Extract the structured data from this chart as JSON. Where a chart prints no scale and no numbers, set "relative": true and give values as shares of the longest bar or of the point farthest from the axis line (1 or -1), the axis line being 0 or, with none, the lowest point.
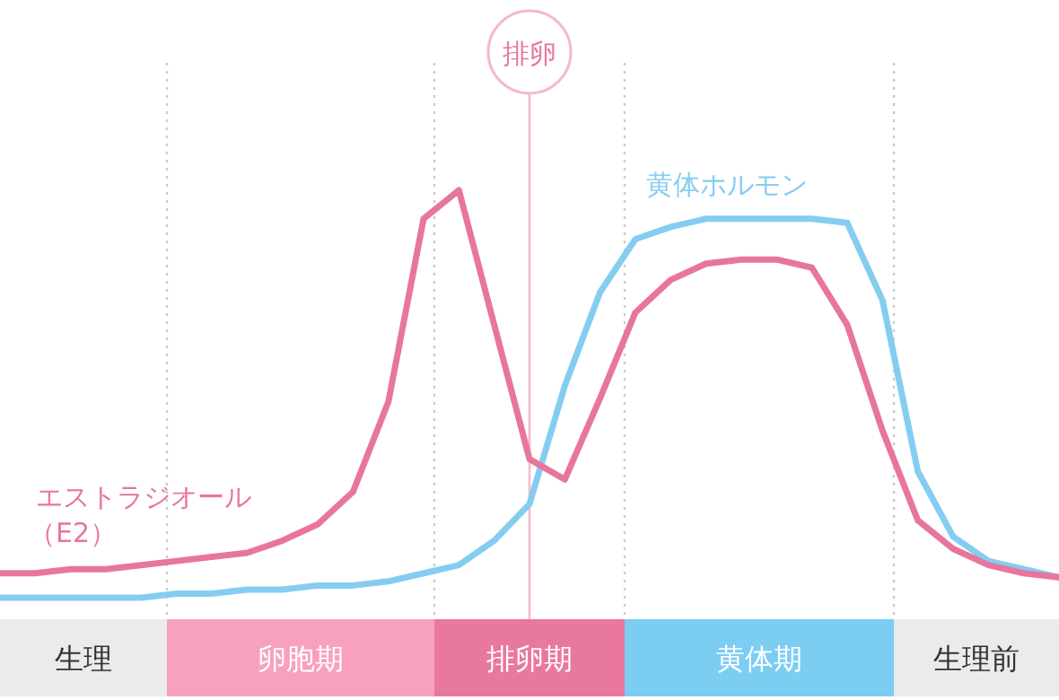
{
  "chart_data": {
    "type": "line",
    "relative": true,
    "categories": [
      null,
      null,
      null,
      null,
      null,
      null,
      null,
      null,
      null,
      null,
      null,
      null,
      null,
      null,
      null,
      null,
      null,
      null,
      null,
      null,
      null,
      null,
      null,
      null,
      null,
      null,
      null,
      null,
      null,
      null,
      null
    ],
    "series": [
      {
        "name": "エストラジオール（E2）",
        "color": "#e8769c",
        "values": [
          0.06,
          0.06,
          0.07,
          0.07,
          0.08,
          0.09,
          0.1,
          0.11,
          0.14,
          0.18,
          0.26,
          0.48,
          0.93,
          1,
          0.67,
          0.34,
          0.29,
          0.49,
          0.7,
          0.78,
          0.82,
          0.83,
          0.83,
          0.81,
          0.67,
          0.41,
          0.19,
          0.12,
          0.08,
          0.06,
          0.05
        ]
      },
      {
        "name": "黄体ホルモン",
        "color": "#85cdf0",
        "values": [
          0,
          0,
          0,
          0.0,
          0.0,
          0.01,
          0.01,
          0.02,
          0.02,
          0.03,
          0.03,
          0.04,
          0.06,
          0.08,
          0.14,
          0.23,
          0.52,
          0.75,
          0.88,
          0.91,
          0.93,
          0.93,
          0.93,
          0.93,
          0.92,
          0.73,
          0.31,
          0.15,
          0.09,
          0.07,
          0.05
        ]
      }
    ],
    "annotations": [
      "排卵",
      "生理",
      "卵胞期",
      "排卵期",
      "黄体期",
      "生理前"
    ],
    "marker": "none",
    "line_style": "solid"
  }
}
